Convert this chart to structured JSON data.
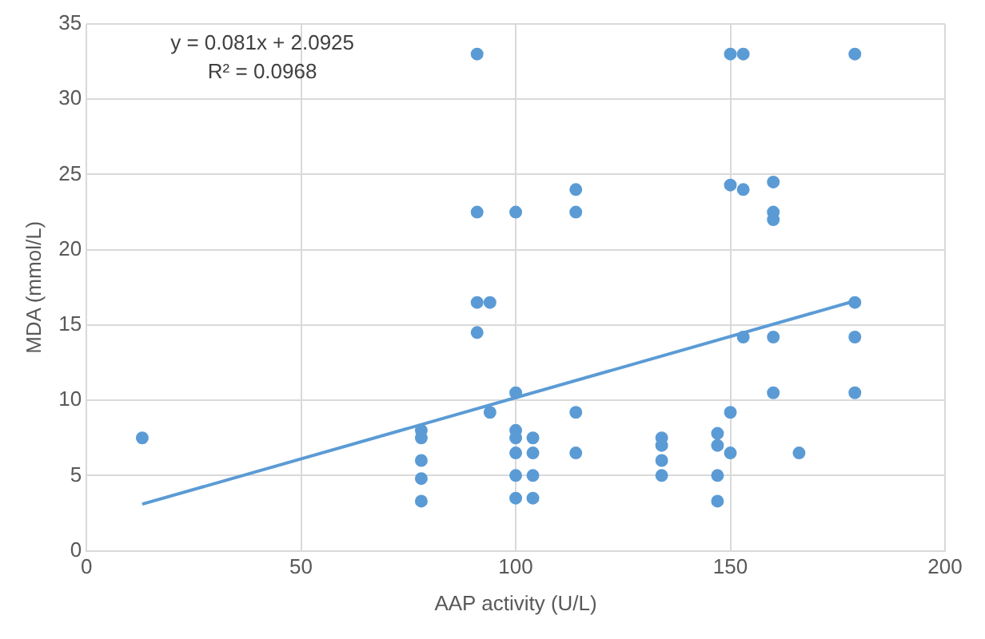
{
  "chart_data": {
    "type": "scatter",
    "xlabel": "AAP activity (U/L)",
    "ylabel": "MDA (mmol/L)",
    "xlim": [
      0,
      200
    ],
    "xticks": [
      0,
      50,
      100,
      150,
      200
    ],
    "ylim": [
      0,
      35
    ],
    "yticks": [
      0,
      5,
      10,
      15,
      20,
      25,
      30,
      35
    ],
    "grid": true,
    "annotations": [
      "y = 0.081x + 2.0925",
      "R² = 0.0968"
    ],
    "series": [
      {
        "marker": "circle",
        "color": "#5b9bd5",
        "x": [
          13,
          78,
          78,
          78,
          78,
          78,
          91,
          91,
          91,
          91,
          94,
          94,
          100,
          100,
          100,
          100,
          100,
          100,
          100,
          104,
          104,
          104,
          104,
          114,
          114,
          114,
          114,
          134,
          134,
          134,
          134,
          147,
          147,
          147,
          147,
          150,
          150,
          150,
          150,
          153,
          153,
          153,
          160,
          160,
          160,
          160,
          160,
          166,
          179,
          179,
          179,
          179
        ],
        "values": [
          7.5,
          8,
          7.5,
          6,
          4.8,
          3.3,
          33,
          22.5,
          16.5,
          14.5,
          16.5,
          9.2,
          22.5,
          10.5,
          7.5,
          6.5,
          5,
          3.5,
          8,
          7.5,
          6.5,
          5,
          3.5,
          24,
          22.5,
          9.2,
          6.5,
          7.5,
          7,
          6,
          5,
          7.8,
          7,
          5,
          3.3,
          33,
          24.3,
          9.2,
          6.5,
          33,
          24,
          14.2,
          24.5,
          22.5,
          22,
          14.2,
          10.5,
          6.5,
          33,
          16.5,
          14.2,
          10.5
        ]
      },
      {
        "type": "line",
        "color": "#5b9bd5",
        "x": [
          13,
          179
        ],
        "values": [
          3.1,
          16.6
        ]
      }
    ]
  }
}
